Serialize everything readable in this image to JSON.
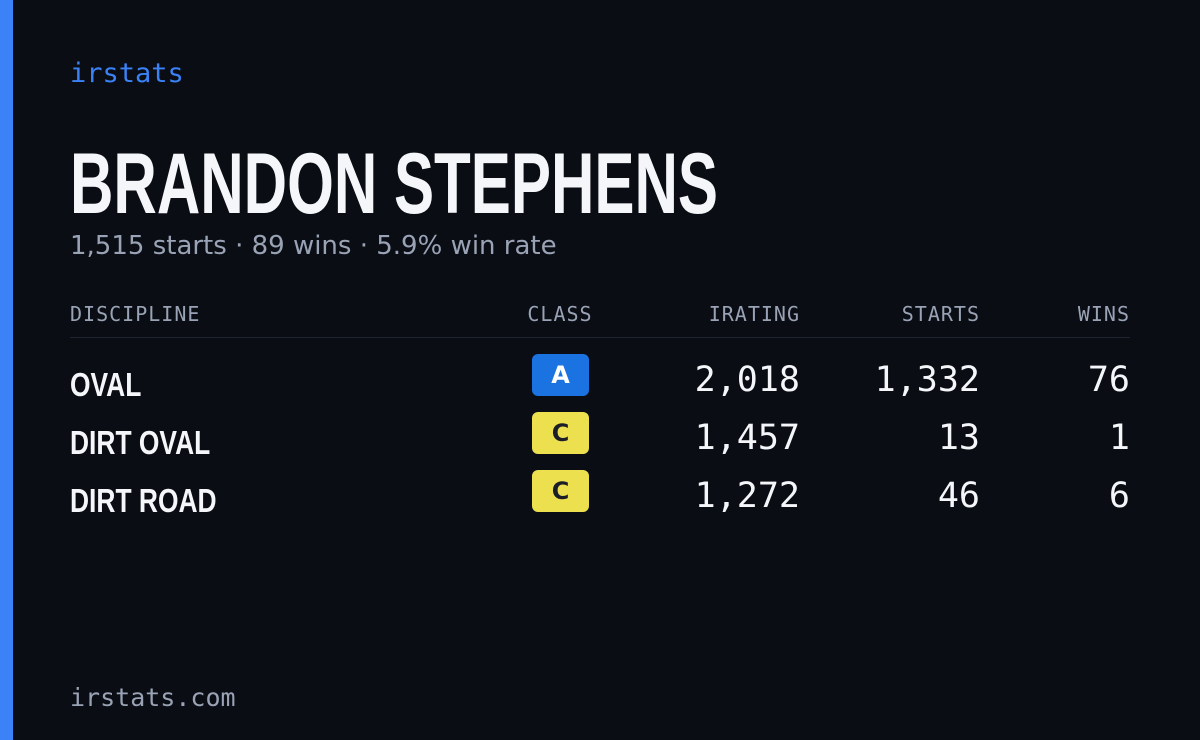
{
  "brand": "irstats",
  "name": "BRANDON STEPHENS",
  "summary": "1,515 starts · 89 wins · 5.9% win rate",
  "table": {
    "headers": [
      "DISCIPLINE",
      "CLASS",
      "IRATING",
      "STARTS",
      "WINS"
    ],
    "rows": [
      {
        "discipline": "OVAL",
        "class": "A",
        "class_color": "#1a73e0",
        "irating": "2,018",
        "starts": "1,332",
        "wins": "76"
      },
      {
        "discipline": "DIRT OVAL",
        "class": "C",
        "class_color": "#ede04f",
        "irating": "1,457",
        "starts": "13",
        "wins": "1"
      },
      {
        "discipline": "DIRT ROAD",
        "class": "C",
        "class_color": "#ede04f",
        "irating": "1,272",
        "starts": "46",
        "wins": "6"
      }
    ]
  },
  "footer": "irstats.com"
}
